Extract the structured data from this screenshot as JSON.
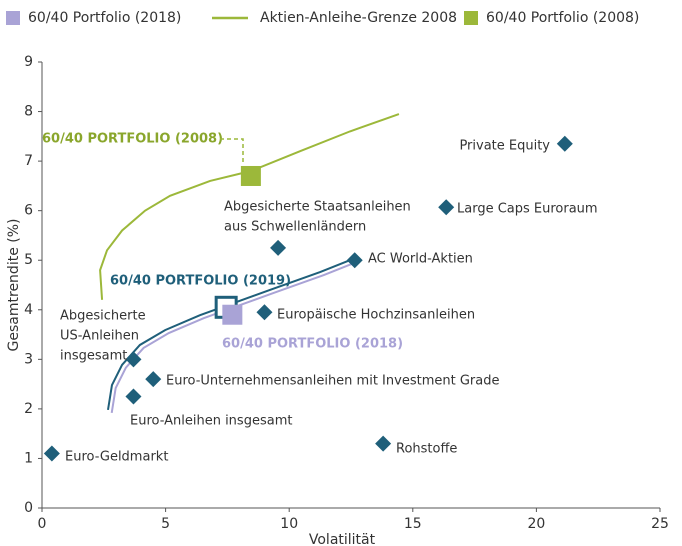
{
  "chart_data": {
    "type": "scatter",
    "xlabel": "Volatilität",
    "ylabel": "Gesamtrendite (%)",
    "xlim": [
      0,
      25
    ],
    "xticks": [
      0,
      5,
      10,
      15,
      20,
      25
    ],
    "ylim": [
      0,
      9
    ],
    "yticks": [
      0,
      1,
      2,
      3,
      4,
      5,
      6,
      7,
      8,
      9
    ],
    "points": {
      "color": "#1f5f7a",
      "labels": [
        [
          "Euro-Geldmarkt"
        ],
        [
          "Euro-Anleihen insgesamt"
        ],
        [
          "Abgesicherte",
          "US-Anleihen",
          "insgesamt"
        ],
        [
          "Euro-Unternehmensanleihen mit Investment Grade"
        ],
        [
          "Europäische Hochzinsanleihen"
        ],
        [
          "Abgesicherte Staatsanleihen",
          "aus Schwellenländern"
        ],
        [
          "AC World-Aktien"
        ],
        [
          "Large Caps Euroraum"
        ],
        [
          "Private Equity"
        ],
        [
          "Rohstoffe"
        ]
      ],
      "x": [
        0.4,
        3.7,
        3.7,
        4.5,
        9.0,
        9.55,
        12.65,
        16.35,
        21.15,
        13.8
      ],
      "y": [
        1.1,
        2.25,
        3.0,
        2.6,
        3.95,
        5.25,
        5.0,
        6.07,
        7.35,
        1.3
      ]
    },
    "lines": [
      {
        "name": "Aktien-Anleihe-Grenze 2008",
        "color": "#9cb83a",
        "x": [
          2.43,
          2.35,
          2.63,
          3.24,
          4.17,
          5.18,
          6.8,
          8.45,
          10.44,
          12.46,
          14.44
        ],
        "y": [
          4.2,
          4.8,
          5.2,
          5.6,
          6.0,
          6.3,
          6.6,
          6.8,
          7.2,
          7.6,
          7.95
        ]
      },
      {
        "color": "#1f5f7a",
        "x": [
          2.67,
          2.83,
          3.24,
          3.96,
          4.98,
          6.39,
          7.44,
          9.22,
          11.25,
          12.66
        ],
        "y": [
          1.98,
          2.48,
          2.89,
          3.29,
          3.59,
          3.89,
          4.08,
          4.4,
          4.76,
          5.04
        ]
      },
      {
        "color": "#a9a3d6",
        "x": [
          2.82,
          2.98,
          3.39,
          4.11,
          5.13,
          6.54,
          7.59,
          9.37,
          11.4,
          12.81
        ],
        "y": [
          1.92,
          2.42,
          2.83,
          3.23,
          3.53,
          3.83,
          4.02,
          4.34,
          4.7,
          4.98
        ]
      }
    ],
    "portfolios": [
      {
        "name": "60/40 Portfolio (2018)",
        "label": "60/40 PORTFOLIO (2018)",
        "color": "#a9a3d6",
        "x": 7.7,
        "y": 3.9
      },
      {
        "name": "60/40 Portfolio (2008)",
        "label": "60/40 PORTFOLIO (2008)",
        "color": "#9cb83a",
        "x": 8.45,
        "y": 6.7
      },
      {
        "label": "60/40 PORTFOLIO (2019)",
        "color": "#1f5f7a",
        "x": 7.45,
        "y": 4.05
      }
    ]
  }
}
